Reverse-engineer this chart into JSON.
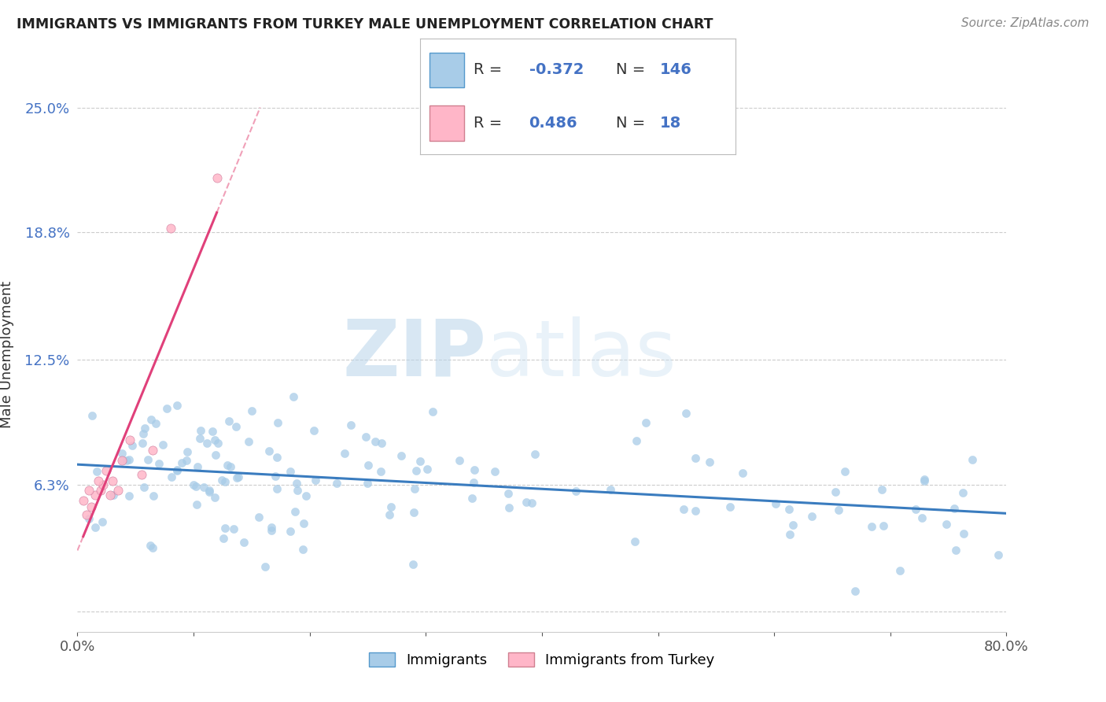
{
  "title": "IMMIGRANTS VS IMMIGRANTS FROM TURKEY MALE UNEMPLOYMENT CORRELATION CHART",
  "source": "Source: ZipAtlas.com",
  "ylabel": "Male Unemployment",
  "watermark_zip": "ZIP",
  "watermark_atlas": "atlas",
  "xlim": [
    0.0,
    0.8
  ],
  "ylim": [
    -0.01,
    0.265
  ],
  "ytick_vals": [
    0.0,
    0.063,
    0.125,
    0.188,
    0.25
  ],
  "ytick_labels": [
    "",
    "6.3%",
    "12.5%",
    "18.8%",
    "25.0%"
  ],
  "xtick_vals": [
    0.0,
    0.1,
    0.2,
    0.3,
    0.4,
    0.5,
    0.6,
    0.7,
    0.8
  ],
  "xtick_labels": [
    "0.0%",
    "",
    "",
    "",
    "",
    "",
    "",
    "",
    "80.0%"
  ],
  "blue_color": "#a8cce8",
  "pink_color": "#ffb6c8",
  "trend_blue": "#3a7cbf",
  "trend_pink": "#e0407a",
  "trend_pink_dashed": "#f0a0b8",
  "R_blue": -0.372,
  "N_blue": 146,
  "R_pink": 0.486,
  "N_pink": 18,
  "background_color": "#ffffff",
  "grid_color": "#cccccc",
  "tick_color": "#4472c4",
  "text_color": "#333333",
  "legend_text_color": "#333333",
  "legend_value_color": "#4472c4"
}
